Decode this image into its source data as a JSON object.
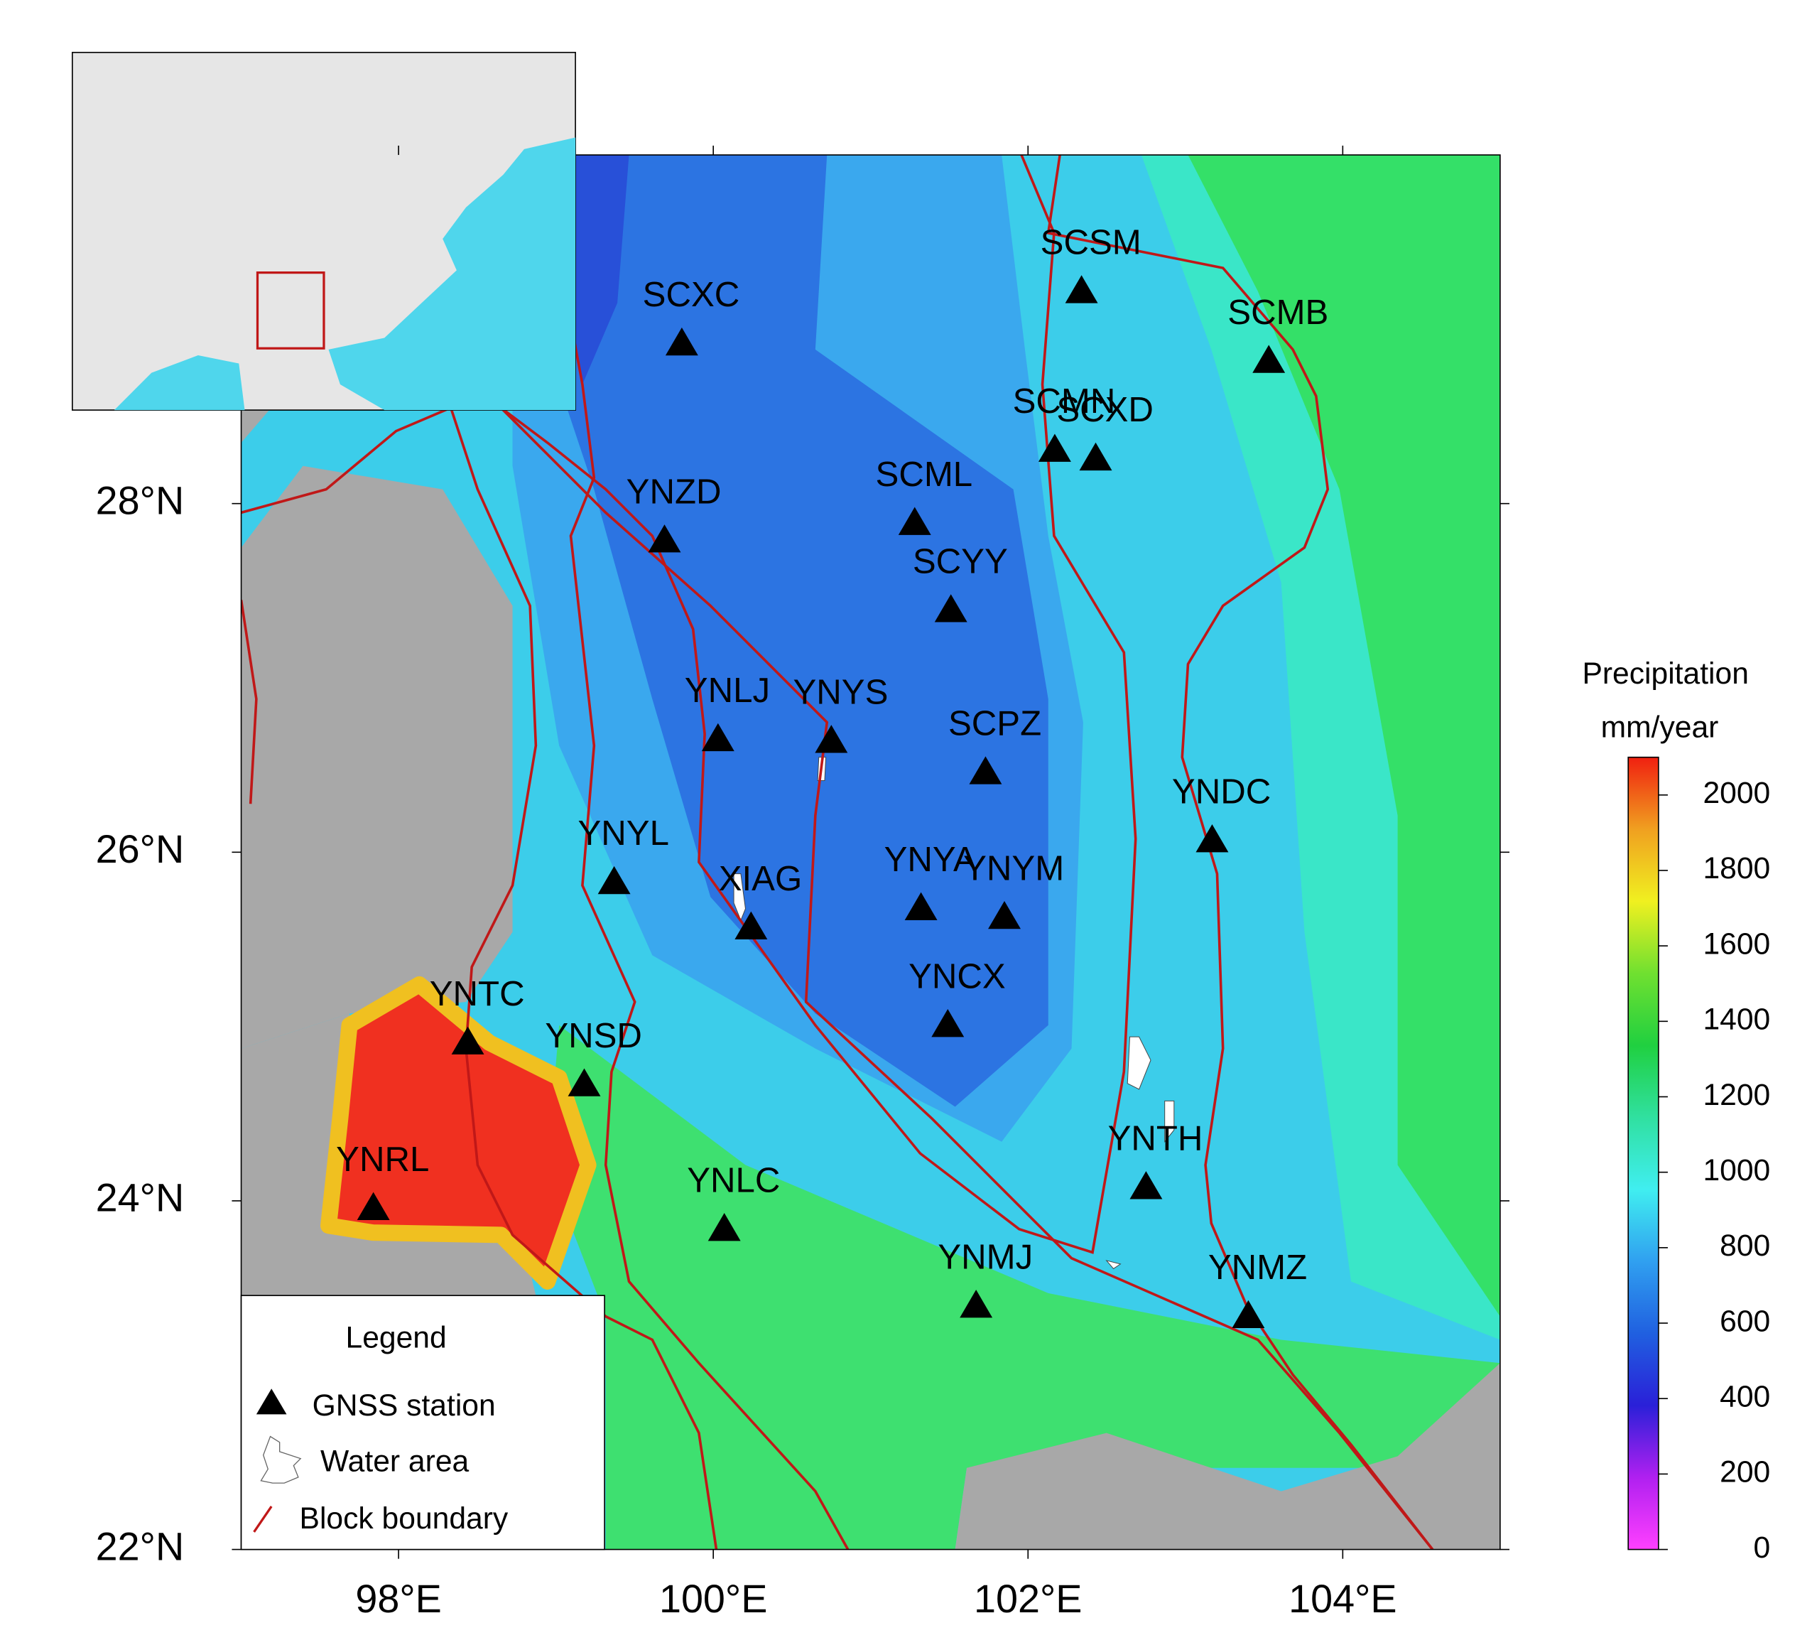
{
  "map": {
    "xlim": [
      97,
      105
    ],
    "ylim": [
      22,
      30
    ],
    "xticks": [
      {
        "value": 98,
        "label": "98°E"
      },
      {
        "value": 100,
        "label": "100°E"
      },
      {
        "value": 102,
        "label": "102°E"
      },
      {
        "value": 104,
        "label": "104°E"
      }
    ],
    "yticks": [
      {
        "value": 22,
        "label": "22°N"
      },
      {
        "value": 24,
        "label": "24°N"
      },
      {
        "value": 26,
        "label": "26°N"
      },
      {
        "value": 28,
        "label": "28°N"
      }
    ],
    "stations": [
      {
        "name": "SCXC",
        "lon": 99.8,
        "lat": 28.93
      },
      {
        "name": "SCSM",
        "lon": 102.34,
        "lat": 29.23
      },
      {
        "name": "SCMB",
        "lon": 103.53,
        "lat": 28.83
      },
      {
        "name": "SCMN",
        "lon": 102.17,
        "lat": 28.32
      },
      {
        "name": "SCXD",
        "lon": 102.43,
        "lat": 28.27
      },
      {
        "name": "SCML",
        "lon": 101.28,
        "lat": 27.9
      },
      {
        "name": "YNZD",
        "lon": 99.69,
        "lat": 27.8
      },
      {
        "name": "SCYY",
        "lon": 101.51,
        "lat": 27.4
      },
      {
        "name": "YNLJ",
        "lon": 100.03,
        "lat": 26.66
      },
      {
        "name": "YNYS",
        "lon": 100.75,
        "lat": 26.65
      },
      {
        "name": "SCPZ",
        "lon": 101.73,
        "lat": 26.47
      },
      {
        "name": "YNDC",
        "lon": 103.17,
        "lat": 26.08
      },
      {
        "name": "YNYL",
        "lon": 99.37,
        "lat": 25.84
      },
      {
        "name": "XIAG",
        "lon": 100.24,
        "lat": 25.58
      },
      {
        "name": "YNYA",
        "lon": 101.32,
        "lat": 25.69
      },
      {
        "name": "YNYM",
        "lon": 101.85,
        "lat": 25.64
      },
      {
        "name": "YNCX",
        "lon": 101.49,
        "lat": 25.02
      },
      {
        "name": "YNTC",
        "lon": 98.44,
        "lat": 24.92
      },
      {
        "name": "YNSD",
        "lon": 99.18,
        "lat": 24.68
      },
      {
        "name": "YNTH",
        "lon": 102.75,
        "lat": 24.09
      },
      {
        "name": "YNRL",
        "lon": 97.84,
        "lat": 23.97
      },
      {
        "name": "YNLC",
        "lon": 100.07,
        "lat": 23.85
      },
      {
        "name": "YNMJ",
        "lon": 101.67,
        "lat": 23.41
      },
      {
        "name": "YNMZ",
        "lon": 103.4,
        "lat": 23.35
      }
    ]
  },
  "colorbar": {
    "title": "Precipitation",
    "unit": "mm/year",
    "lim": [
      0,
      2100
    ],
    "ticks": [
      0,
      200,
      400,
      600,
      800,
      1000,
      1200,
      1400,
      1600,
      1800,
      2000
    ],
    "colors": [
      "#ff40ff",
      "#b020f0",
      "#2a20d8",
      "#2060e0",
      "#30a0f0",
      "#40eef0",
      "#30e0a0",
      "#20d040",
      "#70e030",
      "#f0f020",
      "#f0a020",
      "#f02010"
    ]
  },
  "legend": {
    "title": "Legend",
    "items": [
      "GNSS station",
      "Water area",
      "Block boundary"
    ]
  }
}
